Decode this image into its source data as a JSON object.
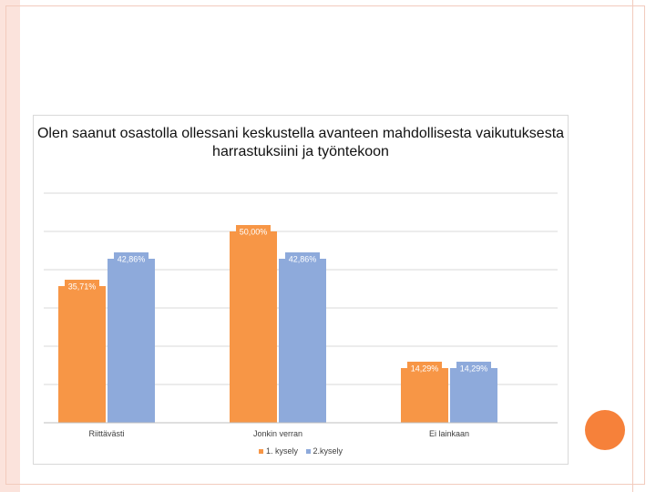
{
  "chart_data": {
    "type": "bar",
    "title": "Olen saanut osastolla ollessani keskustella avanteen mahdollisesta vaikutuksesta harrastuksiini ja työntekoon",
    "categories": [
      "Riittävästi",
      "Jonkin verran",
      "Ei lainkaan"
    ],
    "series": [
      {
        "name": "1. kysely",
        "values": [
          35.71,
          50.0,
          14.29
        ],
        "labels": [
          "35,71%",
          "50,00%",
          "14,29%"
        ],
        "color": "#f79646"
      },
      {
        "name": "2.kysely",
        "values": [
          42.86,
          42.86,
          14.29
        ],
        "labels": [
          "42,86%",
          "42,86%",
          "14,29%"
        ],
        "color": "#8eaadb"
      }
    ],
    "ylim": [
      0,
      60
    ],
    "grid": true,
    "legend_position": "bottom"
  }
}
